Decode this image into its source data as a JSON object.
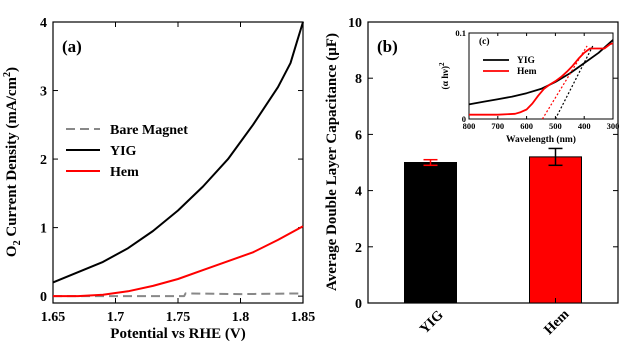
{
  "chart_data": [
    {
      "type": "line",
      "panel_label": "(a)",
      "xlabel": "Potential vs RHE (V)",
      "ylabel_main": "O",
      "ylabel_sub": "2",
      "ylabel_mid": " Current Density (mA/cm",
      "ylabel_sup": "2",
      "ylabel_end": ")",
      "xlim": [
        1.65,
        1.85
      ],
      "ylim": [
        -0.1,
        4
      ],
      "xticks": [
        1.65,
        1.7,
        1.75,
        1.8,
        1.85
      ],
      "xtick_labels": [
        "1.65",
        "1.7",
        "1.75",
        "1.8",
        "1.85"
      ],
      "yticks": [
        0,
        1,
        2,
        3,
        4
      ],
      "ytick_labels": [
        "0",
        "1",
        "2",
        "3",
        "4"
      ],
      "legend_position": "center-left",
      "series": [
        {
          "name": "Bare Magnet",
          "color": "#888888",
          "style": "dashed",
          "x": [
            1.65,
            1.7,
            1.755,
            1.756,
            1.8,
            1.85
          ],
          "y": [
            0.0,
            0.0,
            0.0,
            0.04,
            0.03,
            0.04
          ]
        },
        {
          "name": "YIG",
          "color": "#000000",
          "style": "solid",
          "x": [
            1.65,
            1.67,
            1.69,
            1.71,
            1.73,
            1.75,
            1.77,
            1.79,
            1.81,
            1.83,
            1.84,
            1.845,
            1.85
          ],
          "y": [
            0.2,
            0.35,
            0.5,
            0.7,
            0.95,
            1.25,
            1.6,
            2.0,
            2.5,
            3.05,
            3.4,
            3.7,
            4.0
          ]
        },
        {
          "name": "Hem",
          "color": "#ff0000",
          "style": "solid",
          "x": [
            1.65,
            1.67,
            1.69,
            1.71,
            1.73,
            1.75,
            1.77,
            1.79,
            1.81,
            1.83,
            1.85
          ],
          "y": [
            0.0,
            0.0,
            0.02,
            0.07,
            0.15,
            0.25,
            0.38,
            0.51,
            0.64,
            0.82,
            1.02
          ]
        }
      ]
    },
    {
      "type": "bar",
      "panel_label": "(b)",
      "ylabel": "Average Double Layer Capacitance (μF)",
      "ylim": [
        0,
        10
      ],
      "yticks": [
        0,
        2,
        4,
        6,
        8,
        10
      ],
      "ytick_labels": [
        "0",
        "2",
        "4",
        "6",
        "8",
        "10"
      ],
      "categories": [
        "YIG",
        "Hem"
      ],
      "values": [
        5.0,
        5.2
      ],
      "errors": [
        0.1,
        0.3
      ],
      "colors": [
        "#000000",
        "#ff0000"
      ],
      "error_colors": [
        "#ff0000",
        "#000000"
      ]
    },
    {
      "type": "line",
      "panel_label": "(c)",
      "xlabel": "Wavelength (nm)",
      "ylabel_main": "(α hν)",
      "ylabel_sup": "2",
      "xlim": [
        800,
        300
      ],
      "ylim": [
        0,
        0.1
      ],
      "xticks": [
        800,
        700,
        600,
        500,
        400,
        300
      ],
      "xtick_labels": [
        "800",
        "700",
        "600",
        "500",
        "400",
        "300"
      ],
      "yticks": [
        0,
        0.1
      ],
      "ytick_labels": [
        "0",
        "0.1"
      ],
      "legend_position": "top-left",
      "series": [
        {
          "name": "YIG",
          "color": "#000000",
          "style": "solid",
          "x": [
            800,
            750,
            700,
            650,
            600,
            550,
            500,
            450,
            400,
            350,
            300
          ],
          "y": [
            0.017,
            0.02,
            0.023,
            0.026,
            0.03,
            0.035,
            0.043,
            0.053,
            0.065,
            0.077,
            0.092
          ]
        },
        {
          "name": "Hem",
          "color": "#ff0000",
          "style": "solid",
          "x": [
            800,
            700,
            640,
            620,
            600,
            580,
            560,
            540,
            520,
            500,
            480,
            460,
            440,
            420,
            400,
            380,
            350,
            330,
            310,
            300
          ],
          "y": [
            0.005,
            0.005,
            0.006,
            0.008,
            0.011,
            0.018,
            0.027,
            0.035,
            0.04,
            0.044,
            0.049,
            0.055,
            0.062,
            0.07,
            0.077,
            0.082,
            0.082,
            0.082,
            0.087,
            0.088
          ]
        },
        {
          "name": "",
          "color": "#ff0000",
          "style": "dotted",
          "x": [
            545,
            390
          ],
          "y": [
            0.0,
            0.085
          ]
        },
        {
          "name": "",
          "color": "#000000",
          "style": "dotted",
          "x": [
            500,
            370
          ],
          "y": [
            0.0,
            0.085
          ]
        }
      ]
    }
  ]
}
